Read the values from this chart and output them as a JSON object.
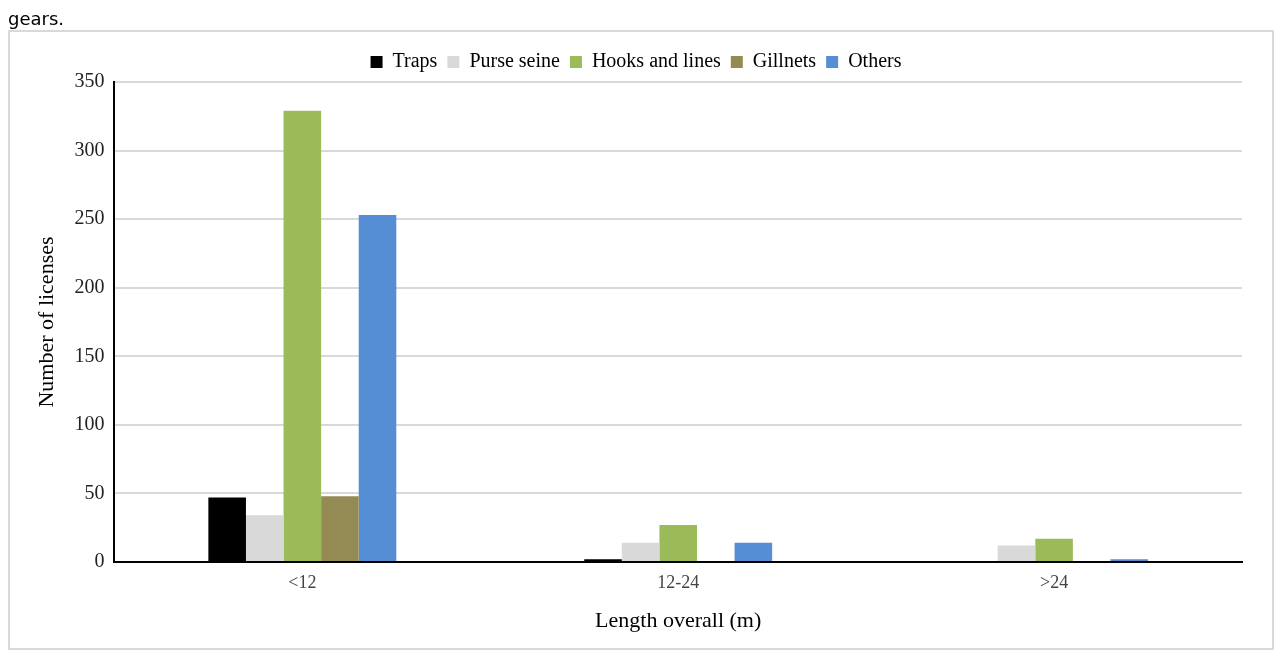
{
  "chart_data": {
    "type": "bar",
    "annotations": [
      "gears."
    ],
    "xlabel": "Length overall (m)",
    "ylabel": "Number of licenses",
    "categories": [
      "<12",
      "12-24",
      ">24"
    ],
    "series": [
      {
        "name": "Traps",
        "color": "#000000",
        "values": [
          47,
          2,
          0
        ]
      },
      {
        "name": "Purse seine",
        "color": "#d9d9d9",
        "values": [
          34,
          14,
          12
        ]
      },
      {
        "name": "Hooks and lines",
        "color": "#9bbb59",
        "values": [
          329,
          27,
          17
        ]
      },
      {
        "name": "Gillnets",
        "color": "#948a54",
        "values": [
          48,
          0,
          0
        ]
      },
      {
        "name": "Others",
        "color": "#558ed5",
        "values": [
          253,
          14,
          2
        ]
      }
    ],
    "ylim": [
      0,
      350
    ],
    "yticks": [
      0,
      50,
      100,
      150,
      200,
      250,
      300,
      350
    ],
    "grid": "y",
    "legend": "top"
  }
}
